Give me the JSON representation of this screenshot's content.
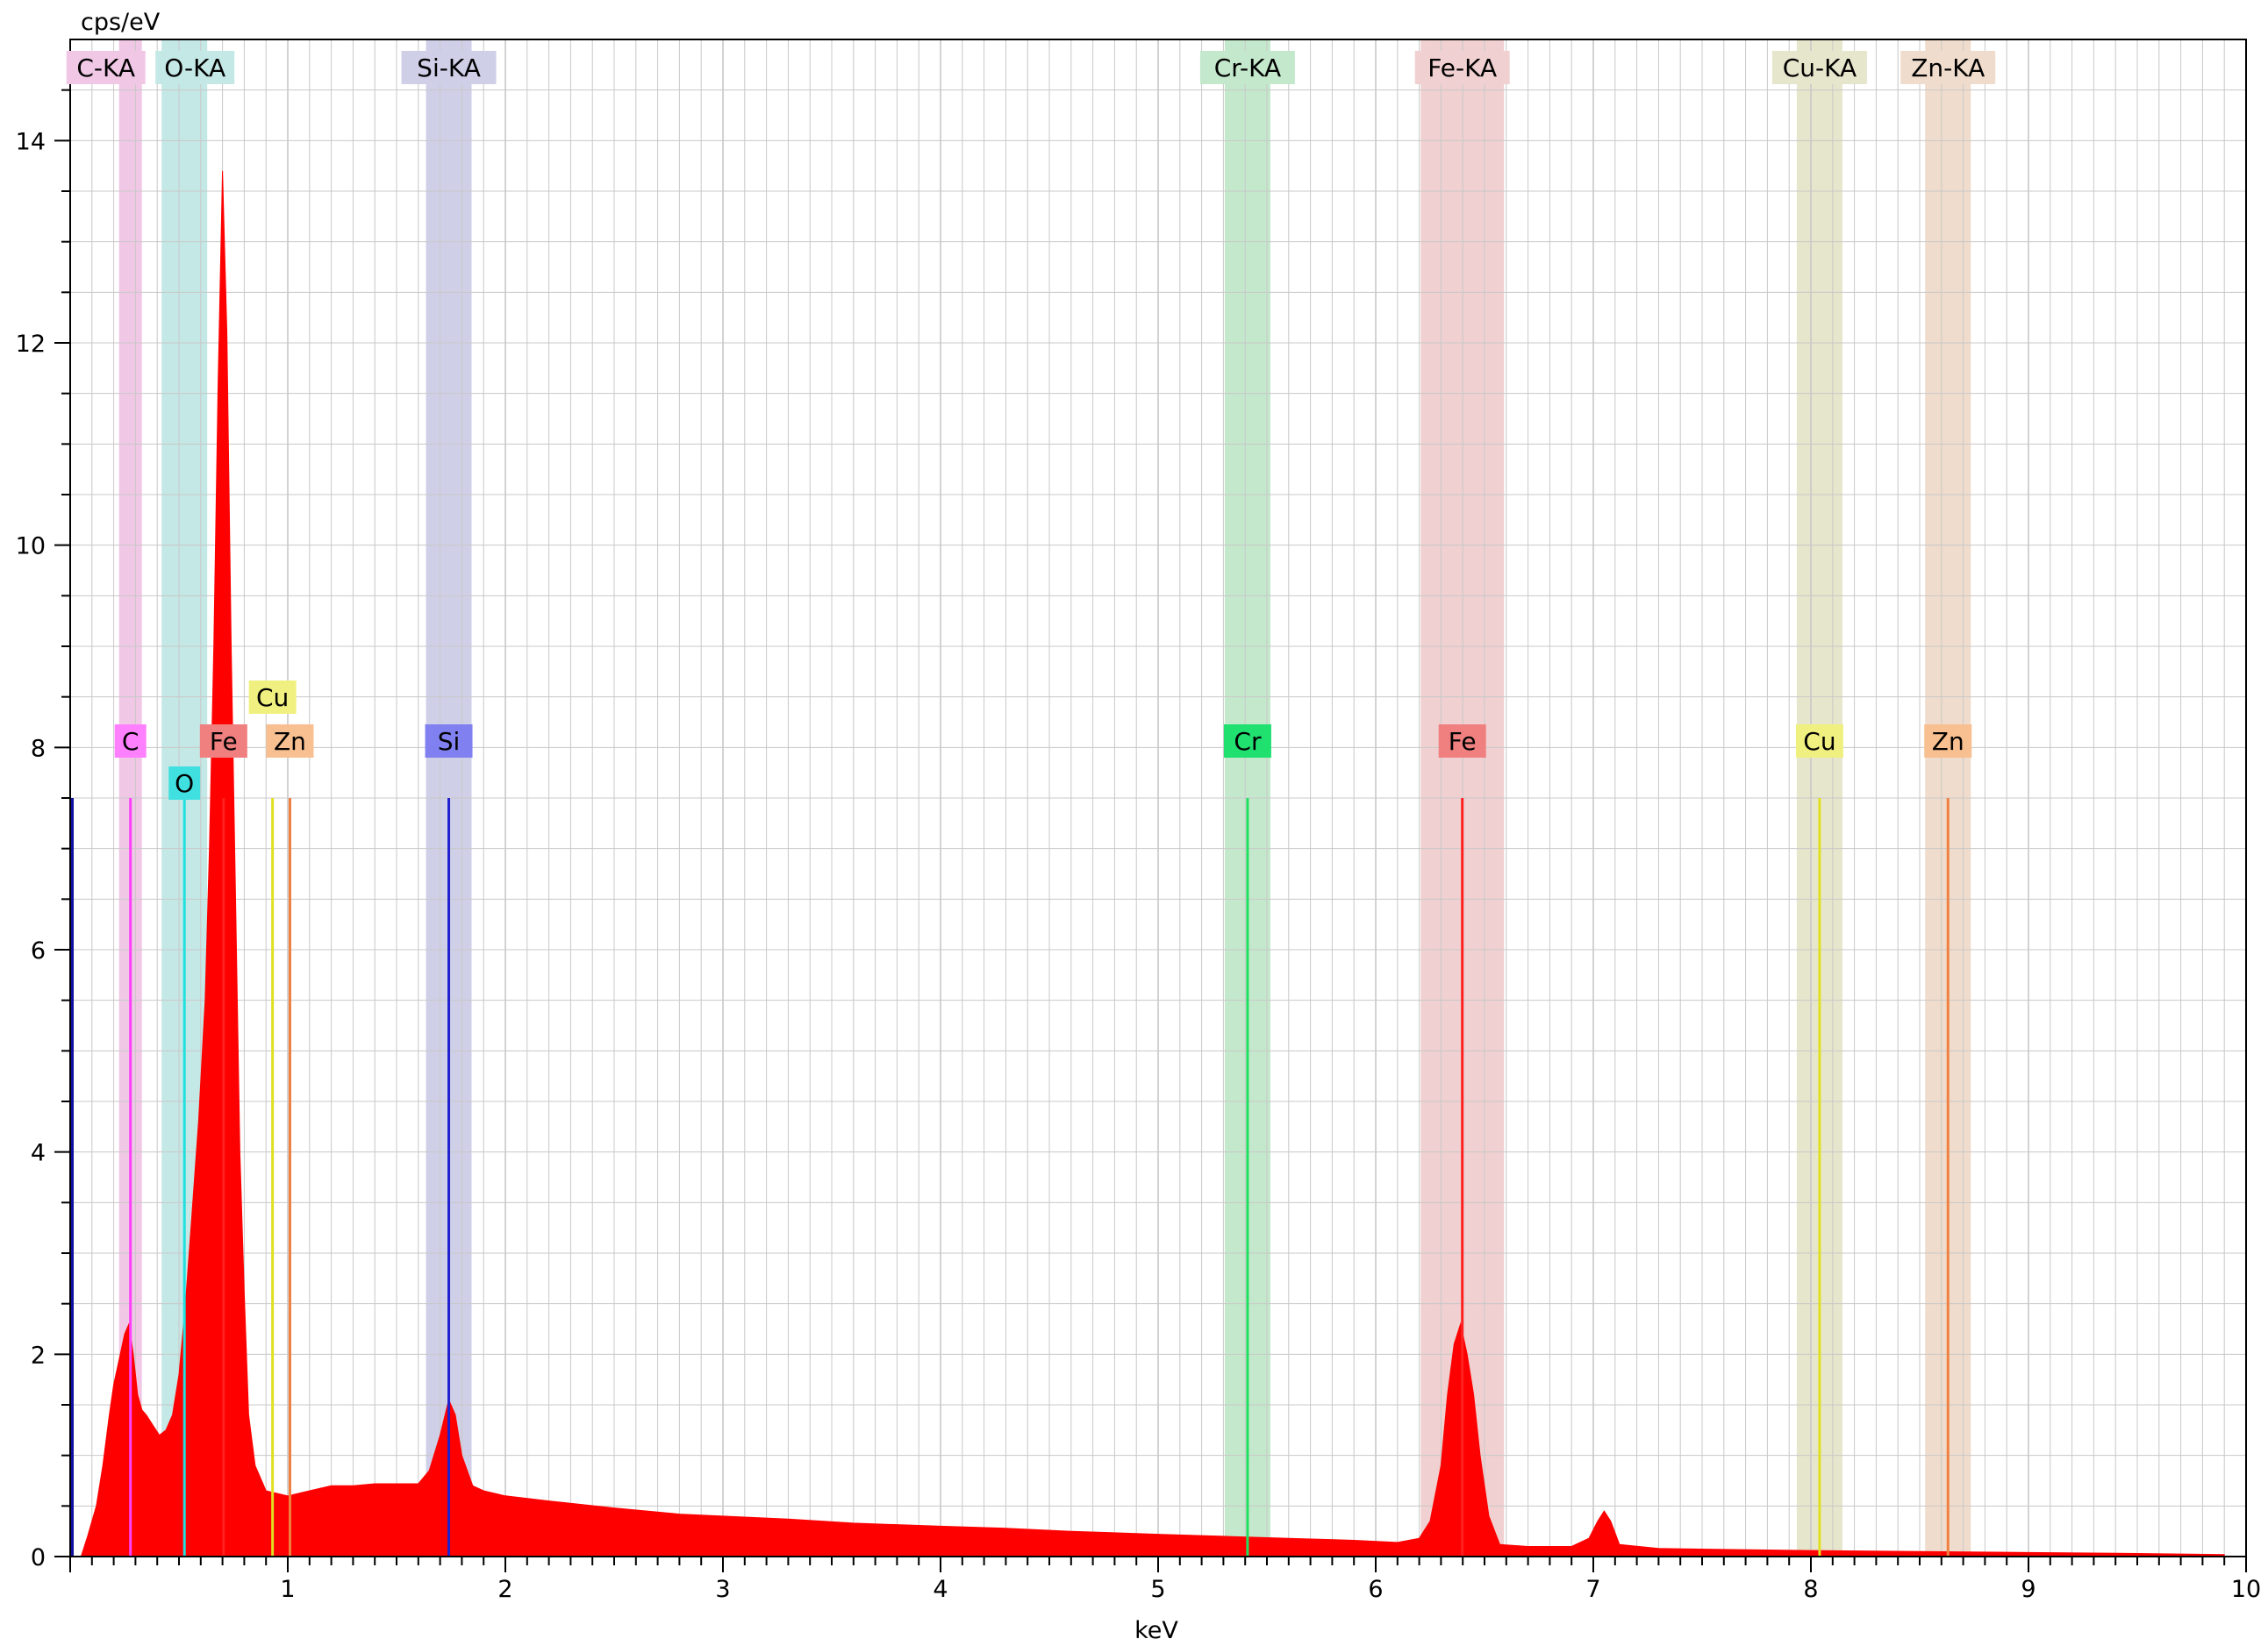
{
  "chart_data": {
    "type": "line",
    "title": "",
    "xlabel": "keV",
    "ylabel": "cps/eV",
    "xlim": [
      0,
      10
    ],
    "ylim": [
      0,
      15
    ],
    "xticks": [
      1,
      2,
      3,
      4,
      5,
      6,
      7,
      8,
      9,
      10
    ],
    "yticks": [
      0,
      2,
      4,
      6,
      8,
      10,
      12,
      14
    ],
    "grid": true,
    "series": [
      {
        "name": "",
        "color": "#ff0000",
        "points": [
          [
            0.05,
            0.0
          ],
          [
            0.08,
            0.2
          ],
          [
            0.12,
            0.5
          ],
          [
            0.15,
            0.9
          ],
          [
            0.18,
            1.4
          ],
          [
            0.2,
            1.7
          ],
          [
            0.22,
            1.9
          ],
          [
            0.25,
            2.2
          ],
          [
            0.27,
            2.3
          ],
          [
            0.29,
            2.0
          ],
          [
            0.31,
            1.6
          ],
          [
            0.33,
            1.45
          ],
          [
            0.35,
            1.4
          ],
          [
            0.38,
            1.3
          ],
          [
            0.41,
            1.2
          ],
          [
            0.44,
            1.25
          ],
          [
            0.47,
            1.4
          ],
          [
            0.5,
            1.8
          ],
          [
            0.53,
            2.5
          ],
          [
            0.56,
            3.4
          ],
          [
            0.59,
            4.3
          ],
          [
            0.62,
            5.5
          ],
          [
            0.64,
            7.0
          ],
          [
            0.66,
            9.0
          ],
          [
            0.68,
            11.6
          ],
          [
            0.7,
            13.7
          ],
          [
            0.72,
            12.1
          ],
          [
            0.74,
            9.0
          ],
          [
            0.76,
            6.5
          ],
          [
            0.78,
            4.0
          ],
          [
            0.8,
            2.6
          ],
          [
            0.82,
            1.4
          ],
          [
            0.85,
            0.9
          ],
          [
            0.9,
            0.65
          ],
          [
            1.0,
            0.6
          ],
          [
            1.1,
            0.65
          ],
          [
            1.2,
            0.7
          ],
          [
            1.3,
            0.7
          ],
          [
            1.4,
            0.72
          ],
          [
            1.5,
            0.72
          ],
          [
            1.6,
            0.72
          ],
          [
            1.65,
            0.85
          ],
          [
            1.7,
            1.2
          ],
          [
            1.74,
            1.55
          ],
          [
            1.77,
            1.4
          ],
          [
            1.8,
            1.0
          ],
          [
            1.85,
            0.7
          ],
          [
            1.9,
            0.65
          ],
          [
            2.0,
            0.6
          ],
          [
            2.2,
            0.55
          ],
          [
            2.5,
            0.48
          ],
          [
            2.8,
            0.42
          ],
          [
            3.0,
            0.4
          ],
          [
            3.3,
            0.37
          ],
          [
            3.6,
            0.33
          ],
          [
            4.0,
            0.3
          ],
          [
            4.3,
            0.28
          ],
          [
            4.6,
            0.25
          ],
          [
            5.0,
            0.22
          ],
          [
            5.3,
            0.2
          ],
          [
            5.6,
            0.18
          ],
          [
            5.9,
            0.16
          ],
          [
            6.1,
            0.14
          ],
          [
            6.2,
            0.18
          ],
          [
            6.25,
            0.35
          ],
          [
            6.3,
            0.9
          ],
          [
            6.33,
            1.6
          ],
          [
            6.36,
            2.1
          ],
          [
            6.39,
            2.3
          ],
          [
            6.42,
            2.0
          ],
          [
            6.45,
            1.6
          ],
          [
            6.48,
            1.0
          ],
          [
            6.52,
            0.4
          ],
          [
            6.57,
            0.12
          ],
          [
            6.7,
            0.1
          ],
          [
            6.9,
            0.1
          ],
          [
            6.98,
            0.18
          ],
          [
            7.02,
            0.35
          ],
          [
            7.05,
            0.45
          ],
          [
            7.08,
            0.35
          ],
          [
            7.12,
            0.12
          ],
          [
            7.3,
            0.08
          ],
          [
            7.6,
            0.07
          ],
          [
            8.0,
            0.06
          ],
          [
            8.5,
            0.05
          ],
          [
            9.0,
            0.04
          ],
          [
            9.5,
            0.03
          ],
          [
            9.9,
            0.02
          ]
        ]
      }
    ],
    "element_lines": [
      {
        "symbol": "C",
        "band_label": "C-KA",
        "energy": 0.277,
        "color": "#ff40ff",
        "band_color": "#f0c8e6"
      },
      {
        "symbol": "O",
        "band_label": "O-KA",
        "energy": 0.525,
        "color": "#20e0e0",
        "band_color": "#c4e8e6"
      },
      {
        "symbol": "Si",
        "band_label": "Si-KA",
        "energy": 1.74,
        "color": "#2020d0",
        "band_color": "#cfd0e8"
      },
      {
        "symbol": "Cr",
        "band_label": "Cr-KA",
        "energy": 5.411,
        "color": "#20e060",
        "band_color": "#c4e8cc"
      },
      {
        "symbol": "Fe",
        "band_label": "Fe-KA",
        "energy": 6.398,
        "color": "#ff2020",
        "band_color": "#f0d0d0"
      },
      {
        "symbol": "Cu",
        "band_label": "Cu-KA",
        "energy": 8.04,
        "color": "#e0e020",
        "band_color": "#e6e6cc"
      },
      {
        "symbol": "Zn",
        "band_label": "Zn-KA",
        "energy": 8.63,
        "color": "#f08040",
        "band_color": "#f0dccc"
      }
    ],
    "l_line_labels": [
      {
        "symbol": "Cu",
        "energy": 0.93
      },
      {
        "symbol": "Fe",
        "energy": 0.705
      },
      {
        "symbol": "Zn",
        "energy": 1.01
      }
    ]
  }
}
